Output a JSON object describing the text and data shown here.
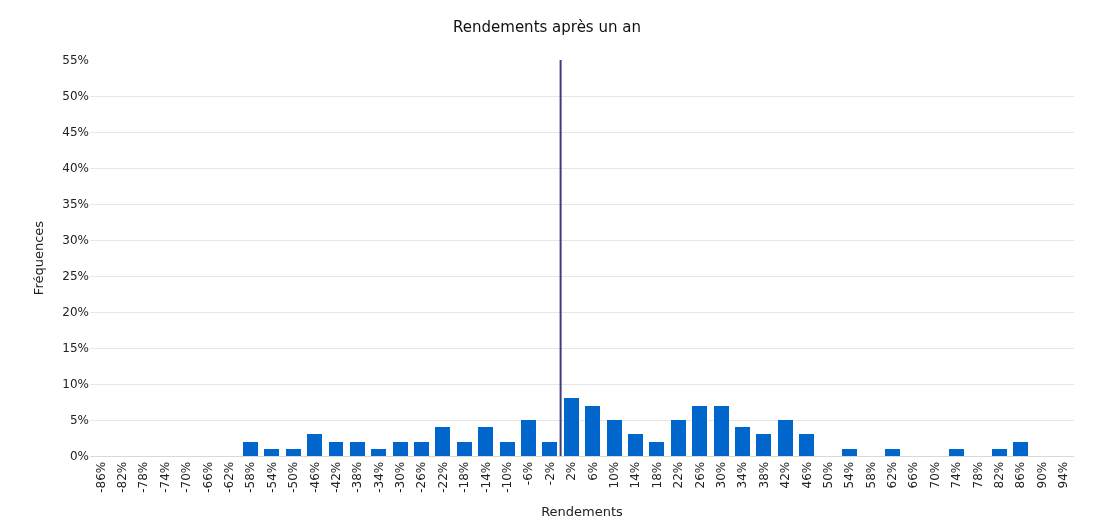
{
  "chart_data": {
    "type": "bar",
    "title": "Rendements après un an",
    "xlabel": "Rendements",
    "ylabel": "Fréquences",
    "x": [
      -86,
      -82,
      -78,
      -74,
      -70,
      -66,
      -62,
      -58,
      -54,
      -50,
      -46,
      -42,
      -38,
      -34,
      -30,
      -26,
      -22,
      -18,
      -14,
      -10,
      -6,
      -2,
      2,
      6,
      10,
      14,
      18,
      22,
      26,
      30,
      34,
      38,
      42,
      46,
      50,
      54,
      58,
      62,
      66,
      70,
      74,
      78,
      82,
      86,
      90,
      94
    ],
    "values": [
      0,
      0,
      0,
      0,
      0,
      0,
      0,
      2,
      1,
      1,
      3,
      2,
      2,
      1,
      2,
      2,
      4,
      2,
      4,
      2,
      5,
      2,
      8,
      7,
      5,
      3,
      2,
      5,
      7,
      7,
      4,
      3,
      5,
      3,
      0,
      1,
      0,
      1,
      0,
      0,
      1,
      0,
      1,
      2,
      0,
      0
    ],
    "color": "#0066cc",
    "xlim": [
      -88,
      96
    ],
    "xticks": [
      {
        "value": -86,
        "label": "-86%"
      },
      {
        "value": -82,
        "label": "-82%"
      },
      {
        "value": -78,
        "label": "-78%"
      },
      {
        "value": -74,
        "label": "-74%"
      },
      {
        "value": -70,
        "label": "-70%"
      },
      {
        "value": -66,
        "label": "-66%"
      },
      {
        "value": -62,
        "label": "-62%"
      },
      {
        "value": -58,
        "label": "-58%"
      },
      {
        "value": -54,
        "label": "-54%"
      },
      {
        "value": -50,
        "label": "-50%"
      },
      {
        "value": -46,
        "label": "-46%"
      },
      {
        "value": -42,
        "label": "-42%"
      },
      {
        "value": -38,
        "label": "-38%"
      },
      {
        "value": -34,
        "label": "-34%"
      },
      {
        "value": -30,
        "label": "-30%"
      },
      {
        "value": -26,
        "label": "-26%"
      },
      {
        "value": -22,
        "label": "-22%"
      },
      {
        "value": -18,
        "label": "-18%"
      },
      {
        "value": -14,
        "label": "-14%"
      },
      {
        "value": -10,
        "label": "-10%"
      },
      {
        "value": -6,
        "label": "-6%"
      },
      {
        "value": -2,
        "label": "-2%"
      },
      {
        "value": 2,
        "label": "2%"
      },
      {
        "value": 6,
        "label": "6%"
      },
      {
        "value": 10,
        "label": "10%"
      },
      {
        "value": 14,
        "label": "14%"
      },
      {
        "value": 18,
        "label": "18%"
      },
      {
        "value": 22,
        "label": "22%"
      },
      {
        "value": 26,
        "label": "26%"
      },
      {
        "value": 30,
        "label": "30%"
      },
      {
        "value": 34,
        "label": "34%"
      },
      {
        "value": 38,
        "label": "38%"
      },
      {
        "value": 42,
        "label": "42%"
      },
      {
        "value": 46,
        "label": "46%"
      },
      {
        "value": 50,
        "label": "50%"
      },
      {
        "value": 54,
        "label": "54%"
      },
      {
        "value": 58,
        "label": "58%"
      },
      {
        "value": 62,
        "label": "62%"
      },
      {
        "value": 66,
        "label": "66%"
      },
      {
        "value": 70,
        "label": "70%"
      },
      {
        "value": 74,
        "label": "74%"
      },
      {
        "value": 78,
        "label": "78%"
      },
      {
        "value": 82,
        "label": "82%"
      },
      {
        "value": 86,
        "label": "86%"
      },
      {
        "value": 90,
        "label": "90%"
      },
      {
        "value": 94,
        "label": "94%"
      }
    ],
    "ylim": [
      0,
      55
    ],
    "yticks": [
      {
        "value": 0,
        "label": "0%"
      },
      {
        "value": 5,
        "label": "5%"
      },
      {
        "value": 10,
        "label": "10%"
      },
      {
        "value": 15,
        "label": "15%"
      },
      {
        "value": 20,
        "label": "20%"
      },
      {
        "value": 25,
        "label": "25%"
      },
      {
        "value": 30,
        "label": "30%"
      },
      {
        "value": 35,
        "label": "35%"
      },
      {
        "value": 40,
        "label": "40%"
      },
      {
        "value": 45,
        "label": "45%"
      },
      {
        "value": 50,
        "label": "50%"
      },
      {
        "value": 55,
        "label": "55%"
      }
    ],
    "grid": "y",
    "ref_lines": [
      {
        "axis": "x",
        "value": 0,
        "color": "#3f3f7f"
      }
    ]
  }
}
